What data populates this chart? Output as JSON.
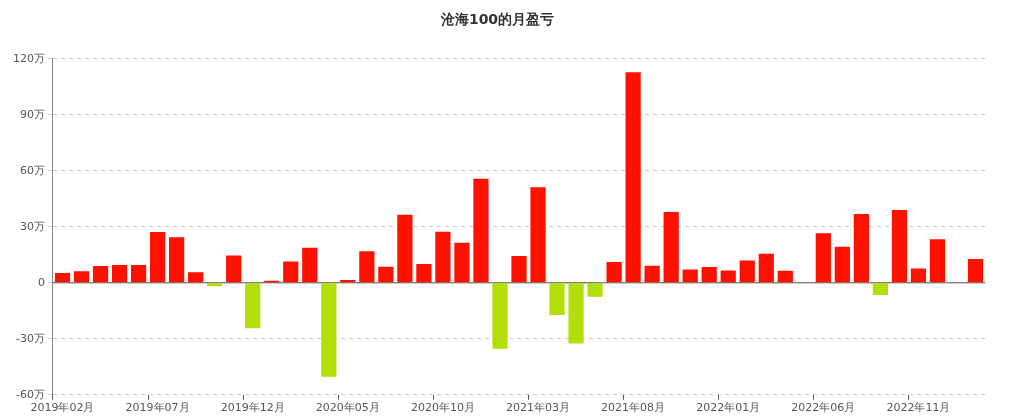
{
  "chart_data": {
    "type": "bar",
    "title": "沧海100的月盈亏",
    "categories": [
      "2019年02月",
      null,
      null,
      null,
      null,
      "2019年07月",
      null,
      null,
      null,
      null,
      "2019年12月",
      null,
      null,
      null,
      null,
      "2020年05月",
      null,
      null,
      null,
      null,
      "2020年10月",
      null,
      null,
      null,
      null,
      "2021年03月",
      null,
      null,
      null,
      null,
      "2021年08月",
      null,
      null,
      null,
      null,
      "2022年01月",
      null,
      null,
      null,
      null,
      "2022年06月",
      null,
      null,
      null,
      null,
      "2022年11月",
      null,
      null,
      null
    ],
    "values": [
      5.3,
      6.2,
      9.0,
      9.6,
      9.6,
      27.2,
      24.4,
      5.6,
      -1.9,
      14.6,
      -24.4,
      1.1,
      11.4,
      18.8,
      -50.3,
      1.5,
      16.9,
      8.6,
      36.4,
      10.1,
      27.4,
      21.4,
      55.7,
      -35.3,
      14.4,
      51.2,
      -17.3,
      -32.5,
      -7.5,
      11.1,
      112.8,
      9.2,
      37.9,
      7.1,
      8.4,
      6.6,
      12.0,
      15.6,
      6.4,
      0,
      26.5,
      19.3,
      36.8,
      -6.6,
      39.0,
      7.7,
      23.3,
      0,
      12.8
    ],
    "colors": [
      "#ff1100",
      "#ff1100",
      "#ff1100",
      "#ff1100",
      "#ff1100",
      "#ff1100",
      "#ff1100",
      "#ff1100",
      "#b3de0a",
      "#ff1100",
      "#b3de0a",
      "#ff1100",
      "#ff1100",
      "#ff1100",
      "#b3de0a",
      "#ff1100",
      "#ff1100",
      "#ff1100",
      "#ff1100",
      "#ff1100",
      "#ff1100",
      "#ff1100",
      "#ff1100",
      "#b3de0a",
      "#ff1100",
      "#ff1100",
      "#b3de0a",
      "#b3de0a",
      "#b3de0a",
      "#ff1100",
      "#ff1100",
      "#ff1100",
      "#ff1100",
      "#ff1100",
      "#ff1100",
      "#ff1100",
      "#ff1100",
      "#ff1100",
      "#ff1100",
      "#ff1100",
      "#ff1100",
      "#ff1100",
      "#ff1100",
      "#b3de0a",
      "#ff1100",
      "#ff1100",
      "#ff1100",
      "#ff1100",
      "#ff1100"
    ],
    "ylim": [
      -60,
      120
    ],
    "yticks": [
      {
        "value": -60,
        "label": "-60万"
      },
      {
        "value": -30,
        "label": "-30万"
      },
      {
        "value": 0,
        "label": "0"
      },
      {
        "value": 30,
        "label": "30万"
      },
      {
        "value": 60,
        "label": "60万"
      },
      {
        "value": 90,
        "label": "90万"
      },
      {
        "value": 120,
        "label": "120万"
      }
    ],
    "grid": "y",
    "legend": false
  }
}
